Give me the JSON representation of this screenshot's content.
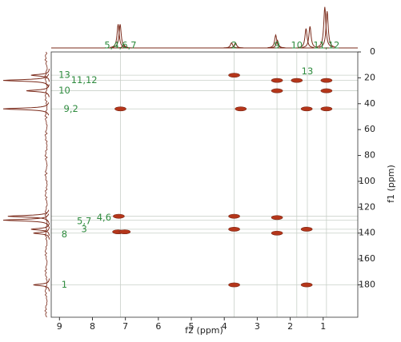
{
  "chart_data": {
    "type": "hsqc",
    "xlabel": "f2 (ppm)",
    "ylabel": "f1 (ppm)",
    "xlim": [
      9.25,
      -0.05
    ],
    "ylim": [
      0,
      205
    ],
    "xticks": [
      9,
      8,
      7,
      6,
      5,
      4,
      3,
      2,
      1
    ],
    "yticks": [
      0,
      20,
      40,
      60,
      80,
      100,
      120,
      140,
      160,
      180
    ],
    "color": "#b5361a",
    "grid_x": [
      7.15,
      3.7,
      2.4,
      1.8,
      1.48,
      0.9
    ],
    "grid_y": [
      18,
      22,
      30,
      44,
      127,
      130,
      137,
      140,
      180
    ],
    "peaks": {
      "x": [
        3.7,
        2.4,
        1.8,
        0.9,
        2.4,
        0.9,
        7.15,
        3.5,
        1.5,
        0.9,
        7.2,
        3.7,
        2.4,
        3.7,
        1.5,
        7.22,
        7.02,
        2.4,
        3.7,
        1.5
      ],
      "y": [
        18,
        22,
        22,
        22,
        30,
        30,
        44,
        44,
        44,
        44,
        127,
        127,
        128,
        137,
        137,
        139,
        139,
        140,
        180,
        180
      ]
    },
    "top_trace": {
      "x": [
        7.22,
        7.16,
        7.05,
        3.78,
        3.66,
        2.44,
        2.39,
        1.52,
        1.4,
        0.95,
        0.88
      ],
      "heights": [
        0.55,
        0.55,
        0.08,
        0.12,
        0.12,
        0.3,
        0.18,
        0.45,
        0.5,
        0.95,
        0.85
      ]
    },
    "left_trace": {
      "y": [
        18,
        22,
        30,
        44,
        127,
        130,
        137,
        140,
        180
      ],
      "heights": [
        0.4,
        1.0,
        0.5,
        1.0,
        0.9,
        1.0,
        0.4,
        0.35,
        0.35
      ]
    },
    "labels": [
      {
        "text": "5,4,6,7",
        "x": 7.15,
        "y": -5
      },
      {
        "text": "2",
        "x": 3.7,
        "y": -5
      },
      {
        "text": "9",
        "x": 2.4,
        "y": -5
      },
      {
        "text": "10",
        "x": 1.8,
        "y": -5
      },
      {
        "text": "11,12",
        "x": 0.9,
        "y": -5
      },
      {
        "text": "13",
        "x": 1.48,
        "y": 15
      },
      {
        "text": "13",
        "x": 8.85,
        "y": 18
      },
      {
        "text": "11,12",
        "x": 8.25,
        "y": 22
      },
      {
        "text": "10",
        "x": 8.85,
        "y": 30
      },
      {
        "text": "9,2",
        "x": 8.65,
        "y": 44
      },
      {
        "text": "5,7",
        "x": 8.25,
        "y": 131
      },
      {
        "text": "4,6",
        "x": 7.65,
        "y": 128
      },
      {
        "text": "3",
        "x": 8.25,
        "y": 137
      },
      {
        "text": "8",
        "x": 8.85,
        "y": 141
      },
      {
        "text": "1",
        "x": 8.85,
        "y": 180
      }
    ]
  }
}
